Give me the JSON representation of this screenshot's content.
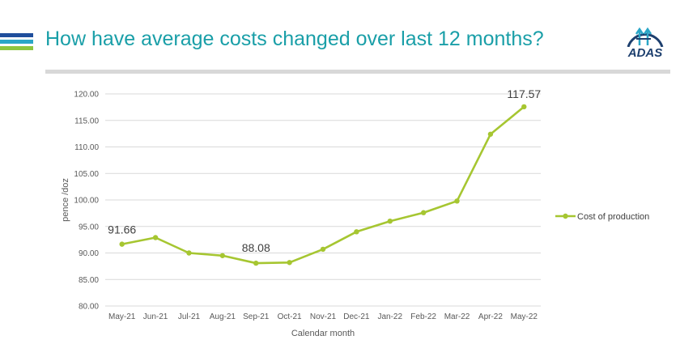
{
  "slide": {
    "title": "How have average costs changed over last 12 months?",
    "logo_text": "ADAS",
    "stripe_colors": [
      "#1f4e9c",
      "#2aa6c7",
      "#8dc63f"
    ],
    "title_color": "#1a9fa8"
  },
  "chart_data": {
    "type": "line",
    "categories": [
      "May-21",
      "Jun-21",
      "Jul-21",
      "Aug-21",
      "Sep-21",
      "Oct-21",
      "Nov-21",
      "Dec-21",
      "Jan-22",
      "Feb-22",
      "Mar-22",
      "Apr-22",
      "May-22"
    ],
    "series": [
      {
        "name": "Cost of production",
        "color": "#a6c631",
        "values": [
          91.66,
          92.9,
          90.0,
          89.5,
          88.08,
          88.2,
          90.7,
          94.0,
          96.0,
          97.6,
          99.8,
          112.4,
          117.57
        ]
      }
    ],
    "data_labels": [
      {
        "index": 0,
        "text": "91.66"
      },
      {
        "index": 4,
        "text": "88.08"
      },
      {
        "index": 12,
        "text": "117.57"
      }
    ],
    "ylim": [
      80,
      120
    ],
    "yticks": [
      "80.00",
      "85.00",
      "90.00",
      "95.00",
      "100.00",
      "105.00",
      "110.00",
      "115.00",
      "120.00"
    ],
    "ylabel": "pence /doz",
    "xlabel": "Calendar month",
    "grid": true,
    "legend_position": "right"
  }
}
